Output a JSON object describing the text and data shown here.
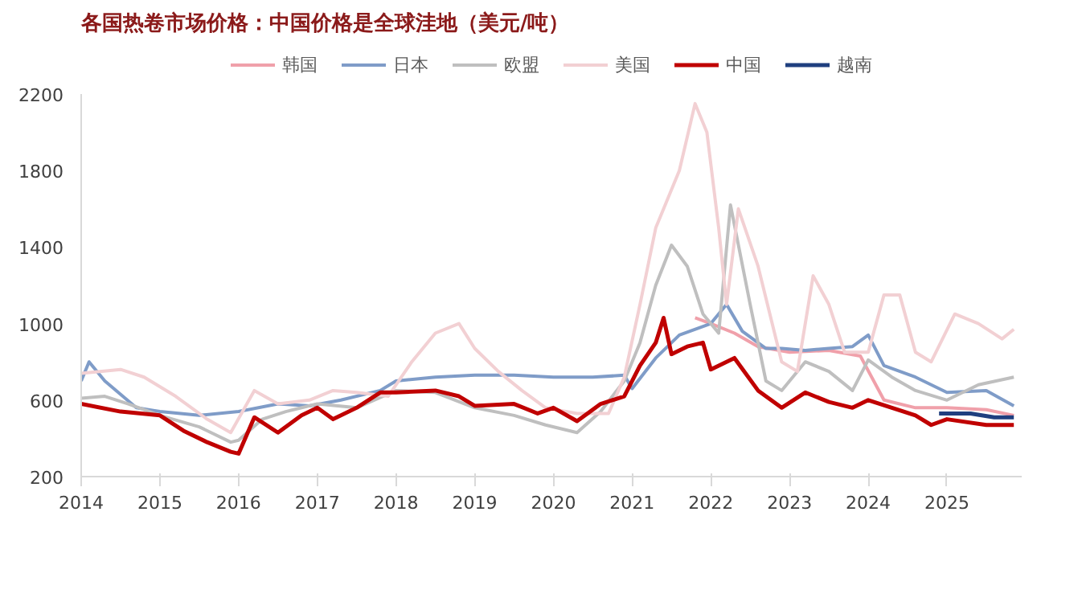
{
  "chart_data": {
    "type": "line",
    "title": "各国热卷市场价格：中国价格是全球洼地（美元/吨）",
    "xlim": [
      2014,
      2025.95
    ],
    "xticks": [
      2014,
      2015,
      2016,
      2017,
      2018,
      2019,
      2020,
      2021,
      2022,
      2023,
      2024,
      2025
    ],
    "ylim": [
      200,
      2200
    ],
    "yticks": [
      200,
      600,
      1000,
      1400,
      1800,
      2200
    ],
    "grid": false,
    "legend": "top",
    "series": [
      {
        "name": "韩国",
        "color": "#f0a0aa",
        "x": [
          2021.8,
          2022.0,
          2022.3,
          2022.6,
          2023.0,
          2023.5,
          2023.9,
          2024.2,
          2024.6,
          2025.0,
          2025.5,
          2025.85
        ],
        "values": [
          1030,
          1000,
          950,
          880,
          850,
          860,
          830,
          600,
          560,
          560,
          550,
          520
        ]
      },
      {
        "name": "日本",
        "color": "#7f9cc8",
        "x": [
          2014.0,
          2014.1,
          2014.3,
          2014.7,
          2015.0,
          2015.5,
          2016.0,
          2016.5,
          2016.9,
          2017.3,
          2017.8,
          2018.0,
          2018.5,
          2019.0,
          2019.5,
          2020.0,
          2020.5,
          2020.9,
          2021.0,
          2021.3,
          2021.6,
          2022.0,
          2022.2,
          2022.4,
          2022.7,
          2022.9,
          2023.2,
          2023.5,
          2023.8,
          2024.0,
          2024.2,
          2024.6,
          2025.0,
          2025.5,
          2025.85
        ],
        "values": [
          700,
          800,
          700,
          560,
          540,
          520,
          540,
          580,
          570,
          600,
          650,
          700,
          720,
          730,
          730,
          720,
          720,
          730,
          660,
          820,
          940,
          1000,
          1100,
          960,
          870,
          870,
          860,
          870,
          880,
          940,
          780,
          720,
          640,
          650,
          570
        ]
      },
      {
        "name": "欧盟",
        "color": "#bfbfbf",
        "x": [
          2014.0,
          2014.3,
          2014.6,
          2015.0,
          2015.5,
          2015.9,
          2016.0,
          2016.3,
          2016.6,
          2017.0,
          2017.5,
          2018.0,
          2018.5,
          2019.0,
          2019.5,
          2019.9,
          2020.3,
          2020.6,
          2020.9,
          2021.1,
          2021.3,
          2021.5,
          2021.7,
          2021.9,
          2022.1,
          2022.25,
          2022.5,
          2022.7,
          2022.9,
          2023.2,
          2023.5,
          2023.8,
          2024.0,
          2024.3,
          2024.6,
          2025.0,
          2025.4,
          2025.85
        ],
        "values": [
          610,
          620,
          580,
          520,
          460,
          380,
          390,
          500,
          540,
          580,
          560,
          650,
          640,
          560,
          520,
          470,
          430,
          540,
          700,
          900,
          1200,
          1410,
          1300,
          1050,
          950,
          1620,
          1100,
          700,
          650,
          800,
          750,
          650,
          810,
          720,
          650,
          600,
          680,
          720
        ]
      },
      {
        "name": "美国",
        "color": "#f2d0d3",
        "x": [
          2014.0,
          2014.5,
          2014.8,
          2015.2,
          2015.6,
          2015.9,
          2016.2,
          2016.5,
          2016.9,
          2017.2,
          2017.5,
          2017.9,
          2018.2,
          2018.5,
          2018.8,
          2019.0,
          2019.3,
          2019.6,
          2019.9,
          2020.3,
          2020.7,
          2020.9,
          2021.1,
          2021.3,
          2021.6,
          2021.8,
          2021.95,
          2022.1,
          2022.2,
          2022.35,
          2022.6,
          2022.9,
          2023.1,
          2023.3,
          2023.5,
          2023.7,
          2024.0,
          2024.2,
          2024.4,
          2024.6,
          2024.8,
          2025.1,
          2025.4,
          2025.7,
          2025.85
        ],
        "values": [
          740,
          760,
          720,
          620,
          500,
          430,
          650,
          580,
          600,
          650,
          640,
          620,
          800,
          950,
          1000,
          870,
          750,
          650,
          560,
          530,
          530,
          720,
          1100,
          1500,
          1800,
          2150,
          2000,
          1500,
          1100,
          1600,
          1300,
          800,
          750,
          1250,
          1100,
          850,
          850,
          1150,
          1150,
          850,
          800,
          1050,
          1000,
          920,
          970
        ]
      },
      {
        "name": "中国",
        "color": "#c00000",
        "x": [
          2014.0,
          2014.5,
          2015.0,
          2015.3,
          2015.6,
          2015.9,
          2016.0,
          2016.2,
          2016.5,
          2016.8,
          2017.0,
          2017.2,
          2017.5,
          2017.8,
          2018.0,
          2018.5,
          2018.8,
          2019.0,
          2019.5,
          2019.8,
          2020.0,
          2020.3,
          2020.6,
          2020.9,
          2021.1,
          2021.3,
          2021.4,
          2021.5,
          2021.7,
          2021.9,
          2022.0,
          2022.3,
          2022.6,
          2022.9,
          2023.2,
          2023.5,
          2023.8,
          2024.0,
          2024.3,
          2024.6,
          2024.8,
          2025.0,
          2025.5,
          2025.85
        ],
        "values": [
          580,
          540,
          520,
          440,
          380,
          330,
          320,
          510,
          430,
          520,
          560,
          500,
          560,
          640,
          640,
          650,
          620,
          570,
          580,
          530,
          560,
          490,
          580,
          620,
          780,
          900,
          1030,
          840,
          880,
          900,
          760,
          820,
          650,
          560,
          640,
          590,
          560,
          600,
          560,
          520,
          470,
          500,
          470,
          470
        ]
      },
      {
        "name": "越南",
        "color": "#1f3f7f",
        "x": [
          2024.9,
          2025.3,
          2025.6,
          2025.85
        ],
        "values": [
          530,
          530,
          510,
          510
        ]
      }
    ]
  }
}
